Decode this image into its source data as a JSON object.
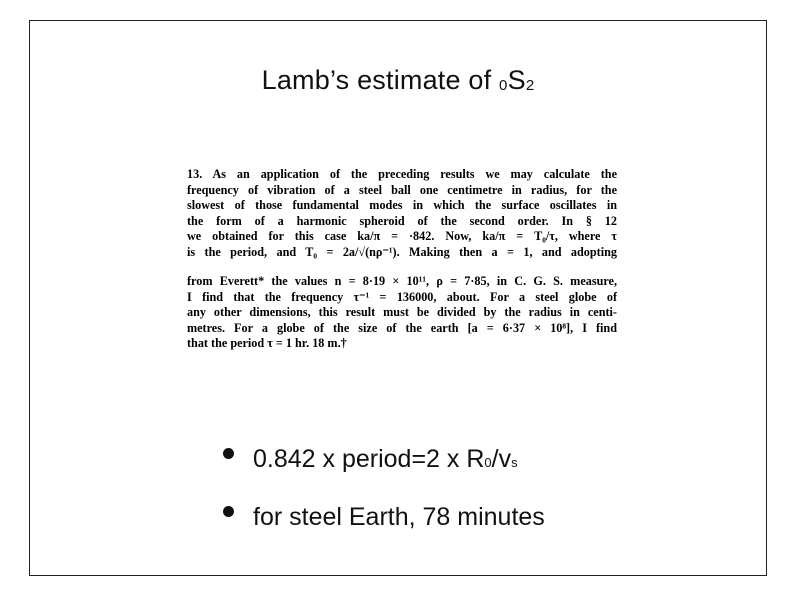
{
  "slide": {
    "title_main": "Lamb’s estimate of ",
    "title_pre": "0",
    "title_s": "S",
    "title_post": "2"
  },
  "scan": {
    "paragraph1": [
      "13.  As an application of the preceding results we  may calculate the",
      "frequency of vibration of a steel ball one  centimetre  in  radius, for the",
      "slowest of those fundamental modes in which the surface  oscillates  in",
      "the  form  of  a  harmonic  spheroid  of  the  second  order.    In  § 12",
      "we obtained for this case  ka/π = ·842.    Now,  ka/π = T₀/τ,  where  τ",
      "is the period, and  T₀ = 2a/√(nρ⁻¹).    Making  then  a = 1,  and adopting"
    ],
    "paragraph2": [
      "from Everett* the values n = 8·19 × 10¹¹, ρ = 7·85, in C. G. S. measure,",
      "I find  that  the  frequency  τ⁻¹ = 136000,  about.   For a steel globe of",
      "any other dimensions, this result must be divided by the radius in centi-",
      "metres.   For a globe of the size of the  earth  [a = 6·37 × 10⁸],  I  find",
      "that the period  τ = 1 hr.  18 m.†"
    ]
  },
  "bullets": [
    {
      "text_a": "0.842 x period=2 x R",
      "sub1": "0",
      "text_b": "/v",
      "sub2": "s"
    },
    {
      "text_a": "for steel Earth, 78 minutes"
    }
  ]
}
